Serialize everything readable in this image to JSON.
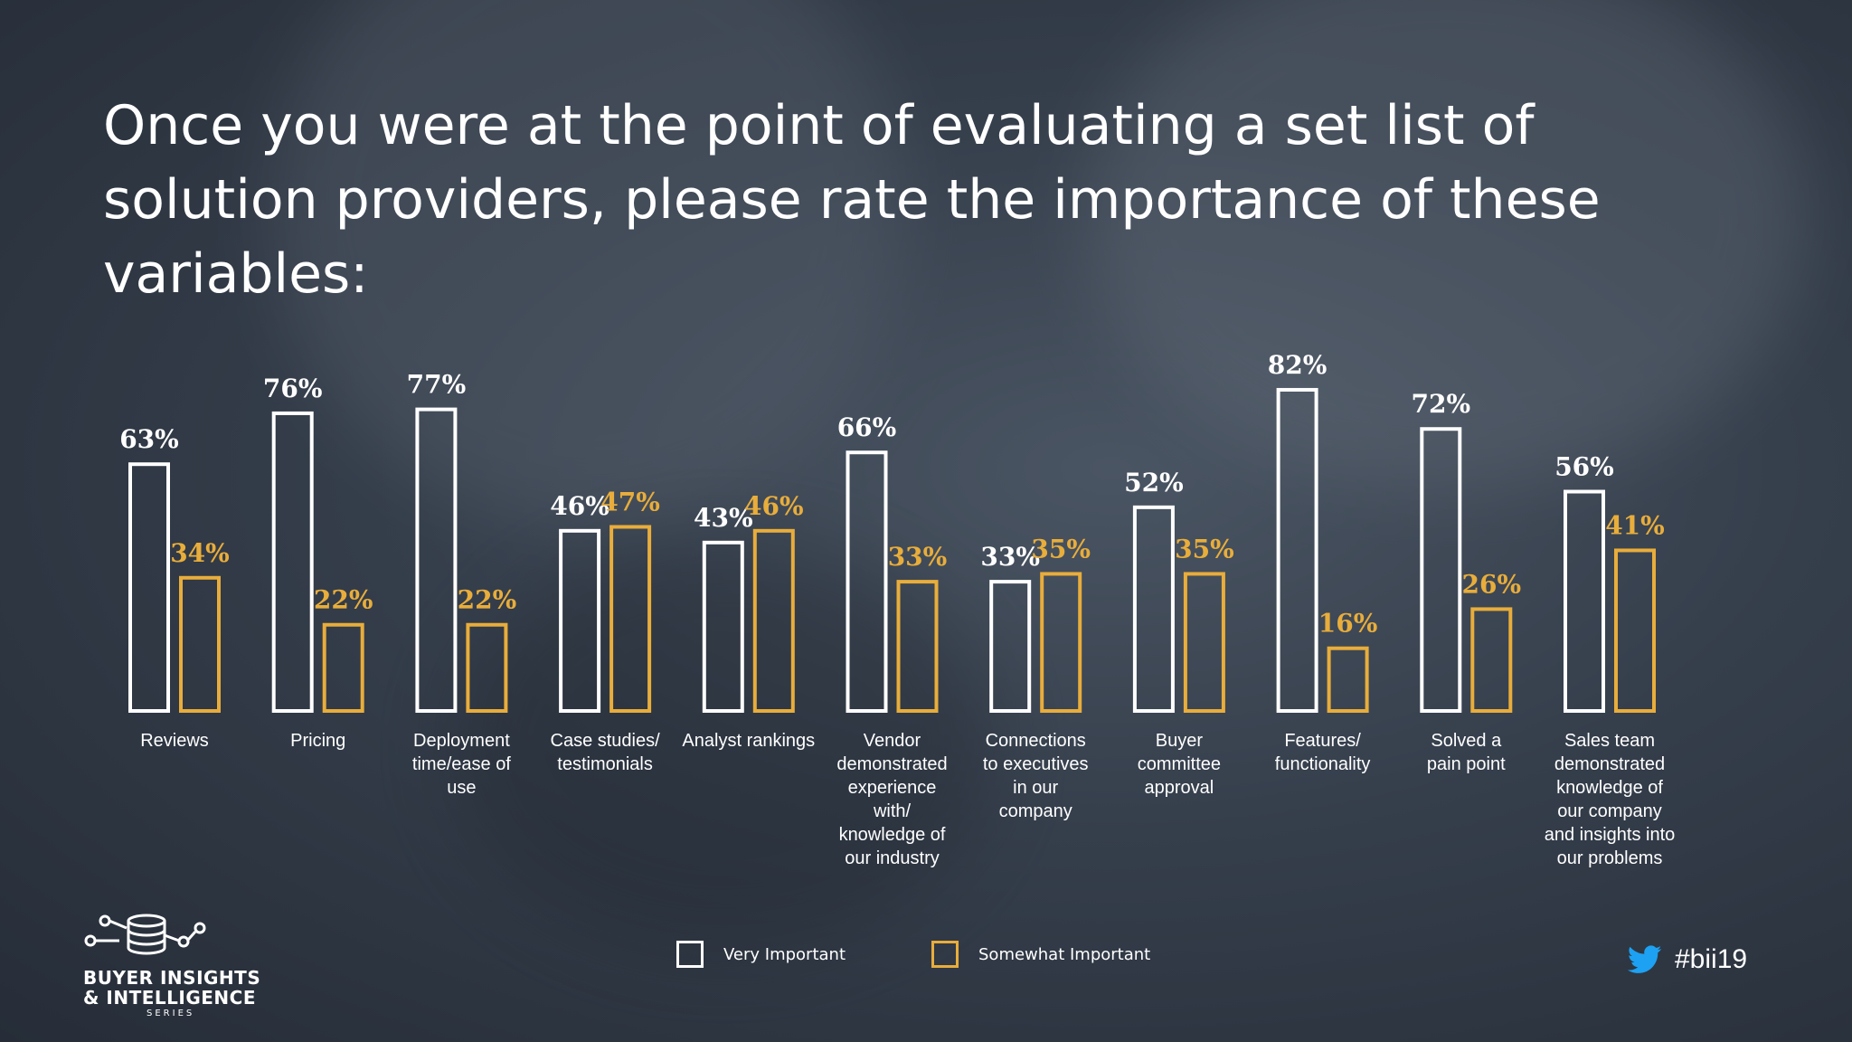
{
  "title": "Once you were at the point of evaluating a set list of solution providers, please rate the importance of these variables:",
  "colors": {
    "very_important": "#ffffff",
    "somewhat_important": "#e8ad3b"
  },
  "chart_data": {
    "type": "bar",
    "title": "",
    "ylim": [
      0,
      100
    ],
    "grid": false,
    "legend": "bottom",
    "categories": [
      [
        "Reviews"
      ],
      [
        "Pricing"
      ],
      [
        "Deployment",
        "time/ease of",
        "use"
      ],
      [
        "Case studies/",
        "testimonials"
      ],
      [
        "Analyst rankings"
      ],
      [
        "Vendor",
        "demonstrated",
        "experience",
        "with/",
        "knowledge of",
        "our industry"
      ],
      [
        "Connections",
        "to executives",
        "in our",
        "company"
      ],
      [
        "Buyer",
        "committee",
        "approval"
      ],
      [
        "Features/",
        "functionality"
      ],
      [
        "Solved a",
        "pain point"
      ],
      [
        "Sales team",
        "demonstrated",
        "knowledge of",
        "our company",
        "and insights into",
        "our problems"
      ]
    ],
    "series": [
      {
        "name": "Very Important",
        "values": [
          63,
          76,
          77,
          46,
          43,
          66,
          33,
          52,
          82,
          72,
          56
        ]
      },
      {
        "name": "Somewhat Important",
        "values": [
          34,
          22,
          22,
          47,
          46,
          33,
          35,
          35,
          16,
          26,
          41
        ]
      }
    ],
    "value_suffix": "%"
  },
  "legend": [
    {
      "label": "Very Important"
    },
    {
      "label": "Somewhat Important"
    }
  ],
  "logo": {
    "line1": "BUYER INSIGHTS",
    "line2": "& INTELLIGENCE",
    "line3": "SERIES",
    "icon": "database-network-icon"
  },
  "social": {
    "icon": "twitter-bird-icon",
    "hashtag": "#bii19"
  }
}
